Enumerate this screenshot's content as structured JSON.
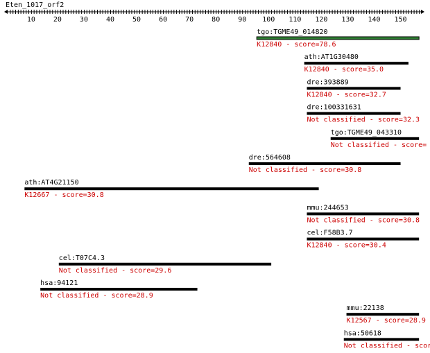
{
  "query": {
    "name": "Eten_1017_orf2"
  },
  "ruler": {
    "tick_labels": [
      "10",
      "20",
      "30",
      "40",
      "50",
      "60",
      "70",
      "80",
      "90",
      "100",
      "110",
      "120",
      "130",
      "140",
      "150"
    ]
  },
  "colors": {
    "hit_bar": "#000000",
    "best_hit_bar": "#2e7d32",
    "score_text": "#cc0000",
    "label_text": "#000000"
  },
  "hits": [
    {
      "id": "tgo:TGME49_014820",
      "start": 95.5,
      "end": 157,
      "annotation": "K12840 - score=78.6",
      "best": true
    },
    {
      "id": "ath:AT1G30480",
      "start": 113.5,
      "end": 153,
      "annotation": "K12840 - score=35.0"
    },
    {
      "id": "dre:393889",
      "start": 114.5,
      "end": 150,
      "annotation": "K12840 - score=32.7"
    },
    {
      "id": "dre:100331631",
      "start": 114.5,
      "end": 150,
      "annotation": "Not classified - score=32.3"
    },
    {
      "id": "tgo:TGME49_043310",
      "start": 123.5,
      "end": 157,
      "annotation": "Not classified - score="
    },
    {
      "id": "dre:564608",
      "start": 92.5,
      "end": 150,
      "annotation": "Not classified - score=30.8"
    },
    {
      "id": "ath:AT4G21150",
      "start": 7.5,
      "end": 119,
      "annotation": "K12667 - score=30.8"
    },
    {
      "id": "mmu:244653",
      "start": 114.5,
      "end": 157,
      "annotation": "Not classified - score=30.8"
    },
    {
      "id": "cel:F58B3.7",
      "start": 114.5,
      "end": 157,
      "annotation": "K12840 - score=30.4"
    },
    {
      "id": "cel:T07C4.3",
      "start": 20.5,
      "end": 101,
      "annotation": "Not classified - score=29.6"
    },
    {
      "id": "hsa:94121",
      "start": 13.5,
      "end": 73,
      "annotation": "Not classified - score=28.9"
    },
    {
      "id": "mmu:22138",
      "start": 129.5,
      "end": 157,
      "annotation": "K12567 - score=28.9"
    },
    {
      "id": "hsa:50618",
      "start": 128.5,
      "end": 157,
      "annotation": "Not classified - scor"
    }
  ]
}
